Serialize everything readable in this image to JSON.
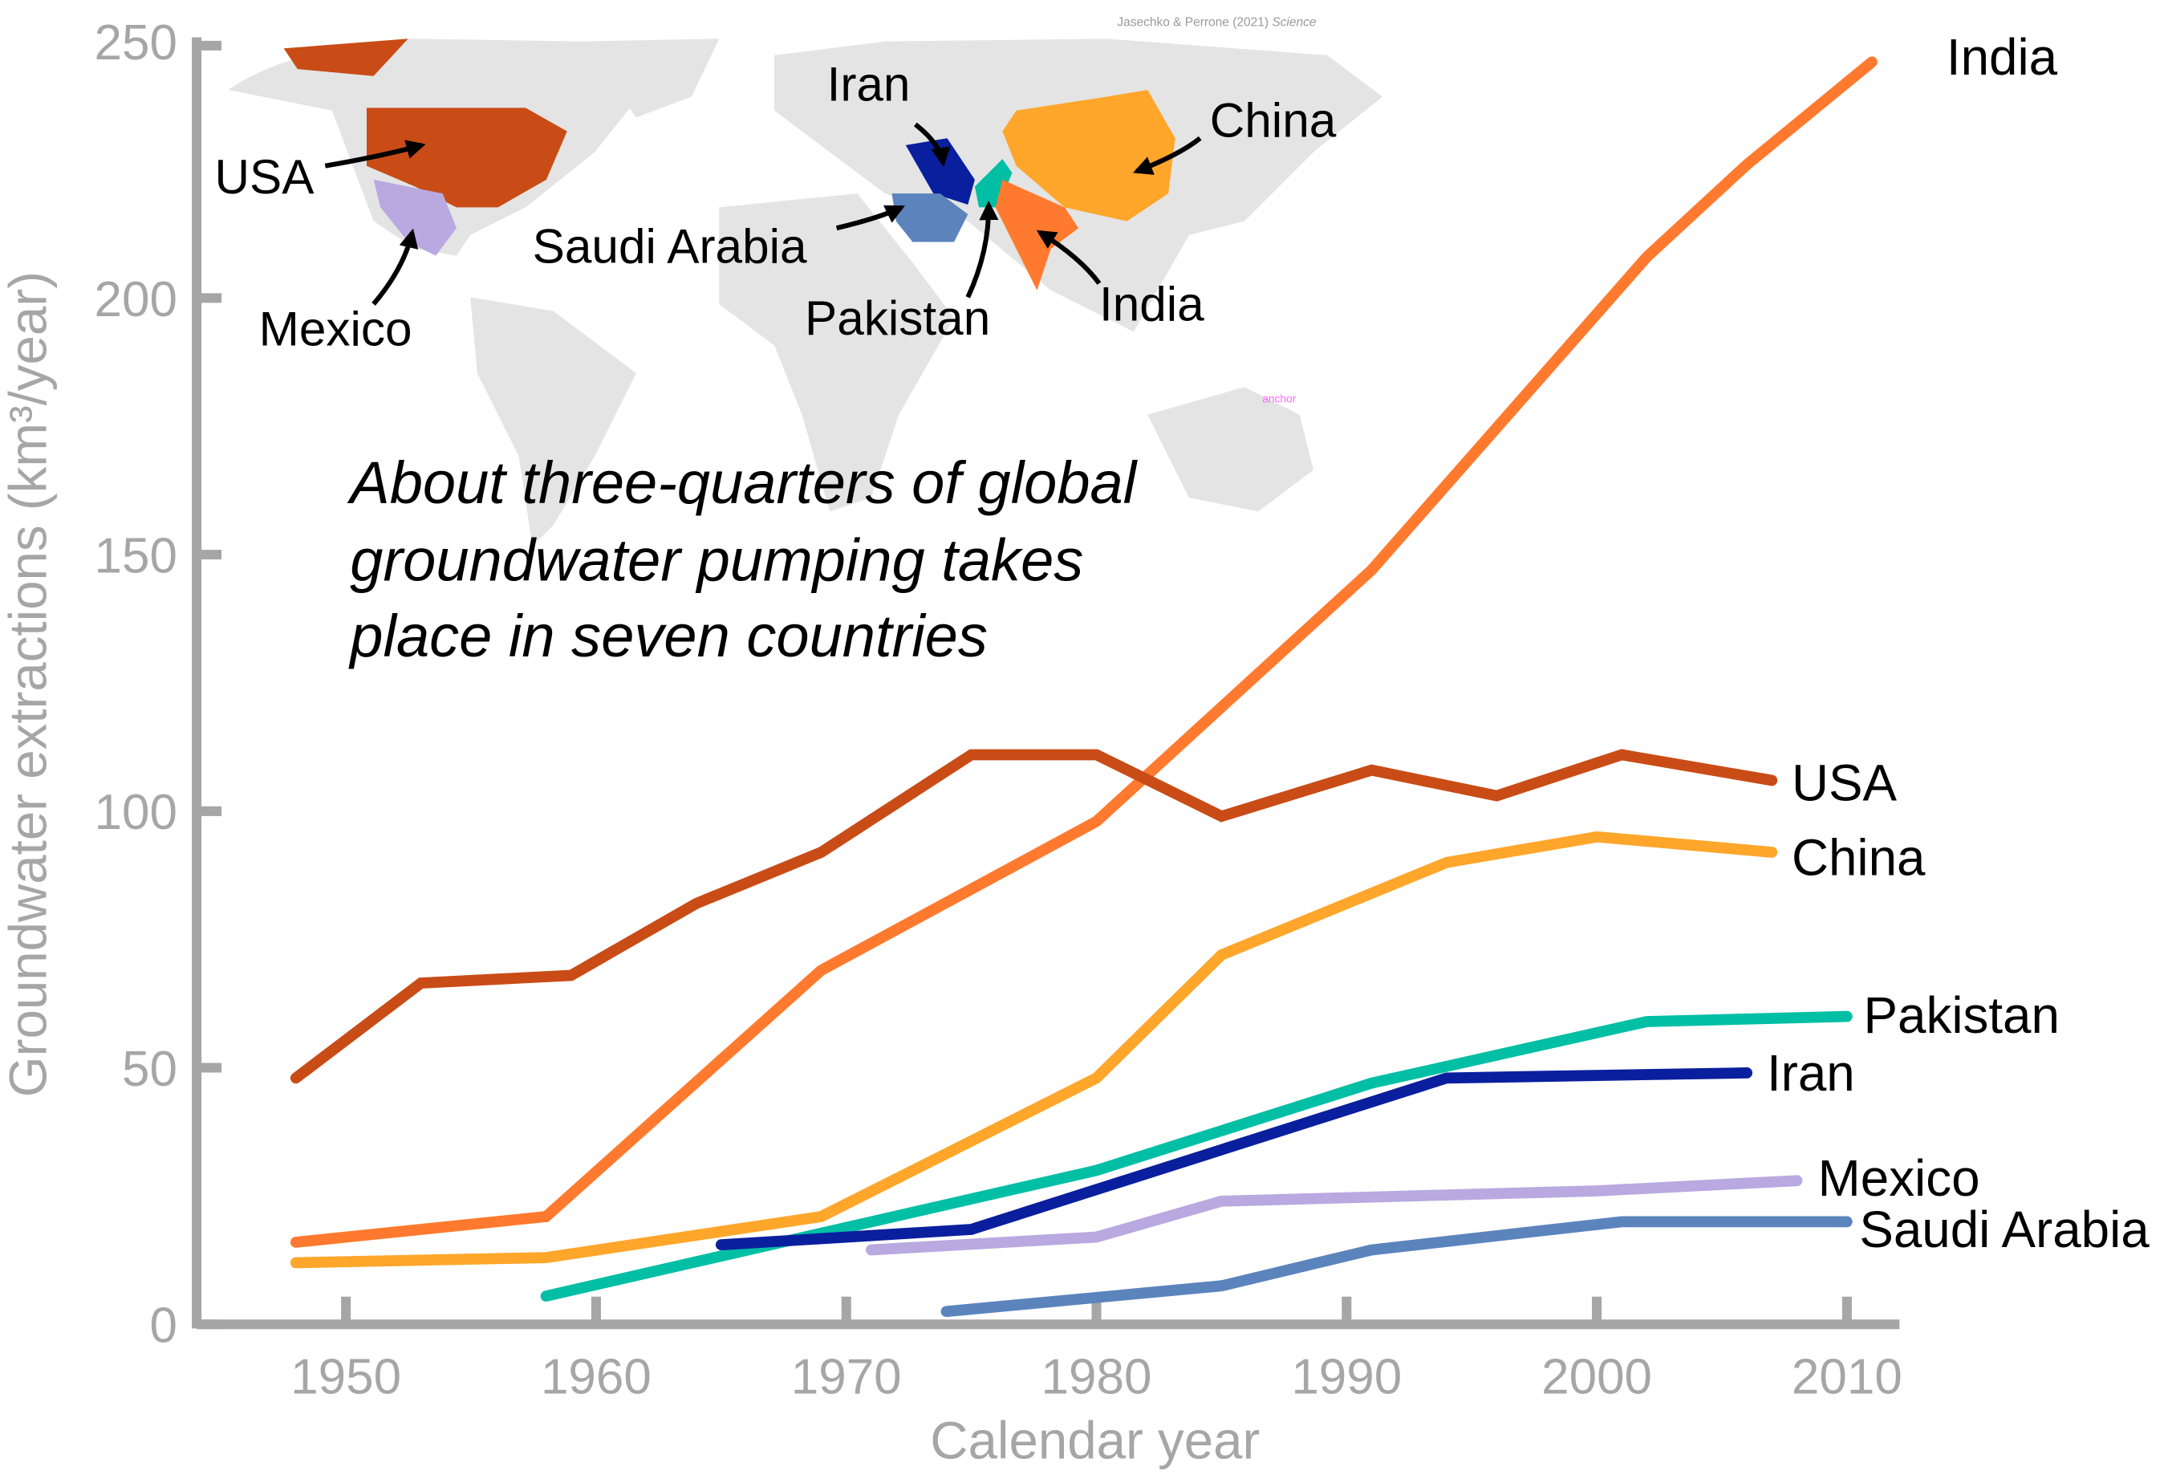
{
  "chart_data": {
    "type": "line",
    "title": "",
    "xlabel": "Calendar year",
    "ylabel": "Groundwater extractions (km³/year)",
    "xlim": [
      1945,
      2013
    ],
    "ylim": [
      0,
      250
    ],
    "xticks": [
      1950,
      1960,
      1970,
      1980,
      1990,
      2000,
      2010
    ],
    "yticks": [
      0,
      50,
      100,
      150,
      200,
      250
    ],
    "grid": false,
    "annotation": [
      "About three-quarters of global",
      "groundwater pumping takes",
      "place in seven countries"
    ],
    "credit": {
      "authors": "Jasechko & Perrone (2021)",
      "journal": "Science"
    },
    "map_marker_text": "anchor",
    "map_labels": [
      "USA",
      "Mexico",
      "Iran",
      "Saudi Arabia",
      "Pakistan",
      "India",
      "China"
    ],
    "series": [
      {
        "name": "India",
        "color": "#ff7a2e",
        "x": [
          1948,
          1958,
          1969,
          1980,
          1991,
          2002,
          2006,
          2011
        ],
        "y": [
          16,
          21,
          69,
          98,
          147,
          208,
          226,
          246
        ]
      },
      {
        "name": "USA",
        "color": "#c94c16",
        "x": [
          1948,
          1953,
          1959,
          1964,
          1969,
          1975,
          1980,
          1985,
          1991,
          1996,
          2001,
          2007
        ],
        "y": [
          48,
          66.5,
          68,
          82,
          92,
          111,
          111,
          99,
          108,
          103,
          111,
          106
        ]
      },
      {
        "name": "China",
        "color": "#ffa62b",
        "x": [
          1948,
          1958,
          1969,
          1980,
          1985,
          1994,
          2000,
          2007
        ],
        "y": [
          12,
          13,
          21,
          48,
          72,
          90,
          95,
          92
        ]
      },
      {
        "name": "Pakistan",
        "color": "#00bfa5",
        "x": [
          1958,
          1980,
          1991,
          2002,
          2010
        ],
        "y": [
          5.5,
          30,
          47,
          59,
          60
        ]
      },
      {
        "name": "Iran",
        "color": "#0a1f9e",
        "x": [
          1965,
          1975,
          1994,
          2006
        ],
        "y": [
          15.5,
          18.5,
          48,
          49
        ]
      },
      {
        "name": "Mexico",
        "color": "#b9a9e0",
        "x": [
          1971,
          1980,
          1985,
          2000,
          2008
        ],
        "y": [
          14.5,
          17,
          24,
          26,
          28
        ]
      },
      {
        "name": "Saudi Arabia",
        "color": "#5b84bd",
        "x": [
          1974,
          1985,
          1991,
          2001,
          2010
        ],
        "y": [
          2.5,
          7.5,
          14.5,
          20,
          20
        ]
      }
    ]
  }
}
